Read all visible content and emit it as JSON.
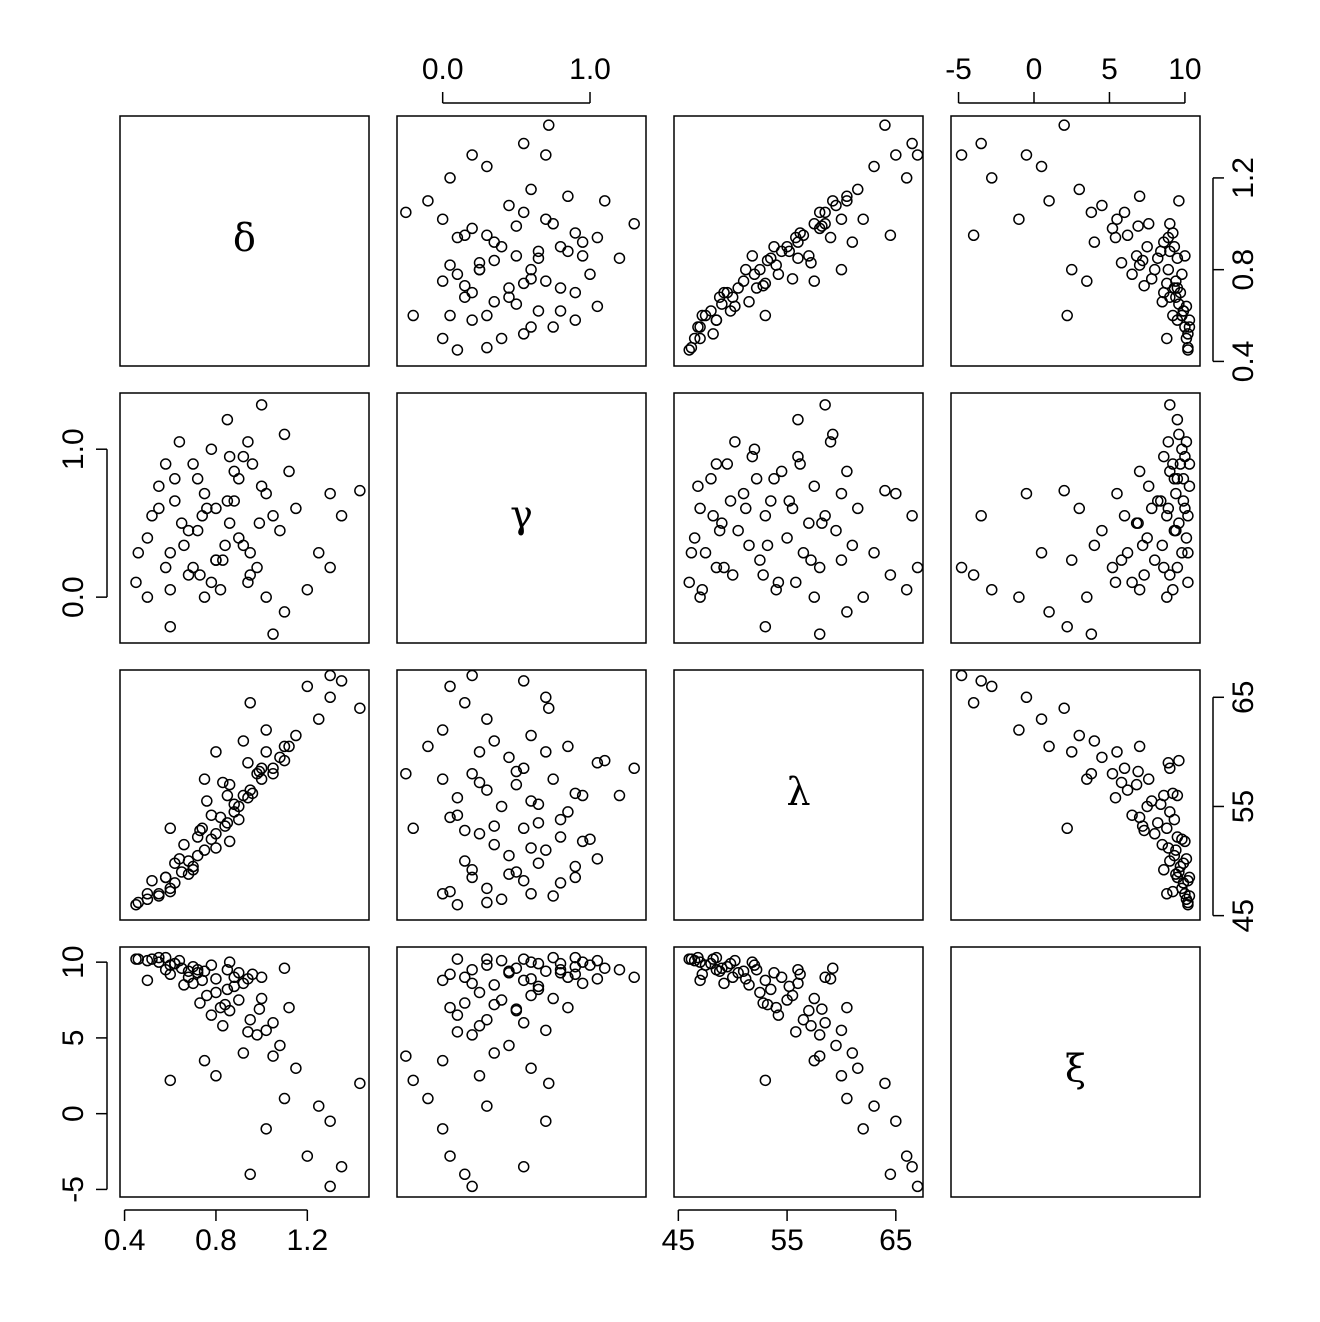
{
  "chart_data": {
    "type": "pairs",
    "point_color": "#000000",
    "variables": [
      {
        "name": "δ",
        "lim": [
          0.38,
          1.47
        ],
        "ticks": [
          0.4,
          0.8,
          1.2
        ],
        "values": [
          0.45,
          0.5,
          0.55,
          0.6,
          0.62,
          0.58,
          0.65,
          0.7,
          0.68,
          0.72,
          0.75,
          0.66,
          0.78,
          0.8,
          0.74,
          0.85,
          0.82,
          0.88,
          0.9,
          0.76,
          0.92,
          0.95,
          0.86,
          1.0,
          0.98,
          1.05,
          0.94,
          1.08,
          1.02,
          0.55,
          0.6,
          0.52,
          0.7,
          0.64,
          0.8,
          0.72,
          0.84,
          0.78,
          0.88,
          0.96,
          0.83,
          0.99,
          1.1,
          0.46,
          0.9,
          0.68,
          0.73,
          0.86,
          0.62,
          0.94,
          1.15,
          1.25,
          1.3,
          1.35,
          1.43,
          1.05,
          1.02,
          0.85,
          1.0,
          0.6,
          1.1,
          0.95,
          1.2,
          0.8,
          0.92,
          1.3,
          0.75,
          1.12,
          0.58,
          0.5
        ]
      },
      {
        "name": "γ",
        "lim": [
          -0.31,
          1.38
        ],
        "ticks": [
          {
            "value": 0,
            "label": "0.0"
          },
          {
            "value": 1,
            "label": "1.0"
          }
        ],
        "values": [
          0.1,
          0.4,
          0.6,
          0.3,
          0.8,
          0.2,
          0.5,
          0.9,
          0.15,
          0.45,
          0.7,
          0.35,
          1.0,
          0.25,
          0.55,
          0.65,
          0.05,
          0.85,
          0.4,
          0.6,
          0.95,
          0.3,
          0.5,
          0.75,
          0.2,
          0.55,
          1.05,
          0.45,
          0.7,
          0.75,
          0.05,
          0.55,
          0.2,
          1.05,
          0.6,
          0.8,
          0.35,
          0.1,
          0.65,
          0.9,
          0.25,
          0.5,
          1.1,
          0.3,
          0.8,
          0.45,
          0.15,
          0.95,
          0.65,
          0.1,
          0.6,
          0.3,
          0.7,
          0.55,
          0.72,
          -0.25,
          0.0,
          1.2,
          1.3,
          -0.2,
          -0.1,
          0.15,
          0.05,
          0.25,
          0.35,
          0.2,
          0.0,
          0.85,
          0.9,
          0.0
        ]
      },
      {
        "name": "λ",
        "lim": [
          44.6,
          67.5
        ],
        "ticks": [
          45,
          55,
          65
        ],
        "values": [
          46.0,
          46.5,
          47.0,
          47.5,
          48.0,
          48.5,
          49.0,
          49.5,
          50.0,
          50.5,
          51.0,
          51.5,
          52.0,
          52.5,
          53.0,
          53.5,
          54.0,
          54.5,
          55.0,
          55.5,
          56.0,
          56.5,
          57.0,
          57.5,
          58.0,
          58.5,
          59.0,
          59.5,
          60.0,
          46.8,
          47.2,
          48.2,
          49.2,
          50.2,
          51.2,
          52.2,
          53.2,
          54.2,
          55.2,
          56.2,
          57.2,
          58.2,
          59.2,
          46.2,
          53.8,
          48.8,
          52.8,
          51.8,
          49.8,
          55.8,
          61.5,
          63.0,
          65.0,
          66.5,
          64.0,
          58.0,
          62.0,
          56.0,
          58.5,
          53.0,
          60.5,
          64.5,
          66.0,
          60.0,
          61.0,
          67.0,
          57.5,
          60.5,
          48.5,
          47.0
        ]
      },
      {
        "name": "ξ",
        "lim": [
          -5.5,
          11.0
        ],
        "ticks": [
          -5,
          0,
          5,
          10
        ],
        "values": [
          10.2,
          10.1,
          10.0,
          9.8,
          9.9,
          9.5,
          9.6,
          9.7,
          9.0,
          9.3,
          9.4,
          8.5,
          9.8,
          8.0,
          8.8,
          8.2,
          7.0,
          9.0,
          7.5,
          7.8,
          8.6,
          6.2,
          6.8,
          7.6,
          5.2,
          6.0,
          8.9,
          4.5,
          5.5,
          10.3,
          9.2,
          10.2,
          8.6,
          10.1,
          8.9,
          9.5,
          7.2,
          6.5,
          8.4,
          9.2,
          5.8,
          6.9,
          9.6,
          10.2,
          9.3,
          9.4,
          7.3,
          10.0,
          9.9,
          5.4,
          3.0,
          0.5,
          -0.5,
          -3.5,
          2.0,
          3.8,
          -1.0,
          9.5,
          9.0,
          2.2,
          1.0,
          -4.0,
          -2.8,
          2.5,
          4.0,
          -4.8,
          3.5,
          7.0,
          10.3,
          8.8
        ]
      }
    ]
  }
}
